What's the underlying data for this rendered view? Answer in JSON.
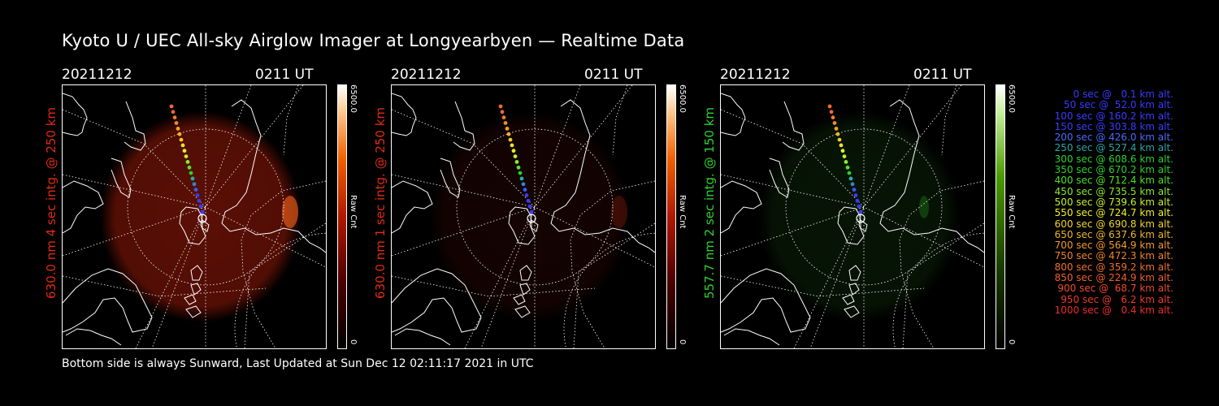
{
  "title": "Kyoto U / UEC All-sky Airglow Imager at Longyearbyen — Realtime Data",
  "panels": [
    {
      "date": "20211212",
      "time": "0211 UT",
      "ylabel": "630.0 nm 4 sec intg. @ 250 km",
      "label_color": "#e02a14",
      "cbar_max": "6500.0",
      "cbar_min": "0",
      "cbar_unit": "Raw Cnt",
      "glow_color": "#6a1206",
      "intensity": 0.85
    },
    {
      "date": "20211212",
      "time": "0211 UT",
      "ylabel": "630.0 nm 1 sec intg. @ 250 km",
      "label_color": "#e02a14",
      "cbar_max": "6500.0",
      "cbar_min": "0",
      "cbar_unit": "Raw Cnt",
      "glow_color": "#2c0804",
      "intensity": 0.45
    },
    {
      "date": "20211212",
      "time": "0211 UT",
      "ylabel": "557.7 nm 2 sec intg. @ 150 km",
      "label_color": "#2ed12e",
      "cbar_max": "6500.0",
      "cbar_min": "0",
      "cbar_unit": "Raw Cnt",
      "glow_color": "#0e2a0a",
      "intensity": 0.5
    }
  ],
  "legend": [
    {
      "text": "0 sec @   0.1 km alt.",
      "color": "#3a3aff"
    },
    {
      "text": "50 sec @  52.0 km alt.",
      "color": "#3a3aff"
    },
    {
      "text": "100 sec @ 160.2 km alt.",
      "color": "#3a3aff"
    },
    {
      "text": "150 sec @ 303.8 km alt.",
      "color": "#3a3aff"
    },
    {
      "text": "200 sec @ 426.0 km alt.",
      "color": "#4a6aff"
    },
    {
      "text": "250 sec @ 527.4 km alt.",
      "color": "#2aa6a6"
    },
    {
      "text": "300 sec @ 608.6 km alt.",
      "color": "#2ad12a"
    },
    {
      "text": "350 sec @ 670.2 km alt.",
      "color": "#2ad12a"
    },
    {
      "text": "400 sec @ 712.4 km alt.",
      "color": "#4ae02a"
    },
    {
      "text": "450 sec @ 735.5 km alt.",
      "color": "#8ae82a"
    },
    {
      "text": "500 sec @ 739.6 km alt.",
      "color": "#c4f02a"
    },
    {
      "text": "550 sec @ 724.7 km alt.",
      "color": "#f0f02a"
    },
    {
      "text": "600 sec @ 690.8 km alt.",
      "color": "#f0d42a"
    },
    {
      "text": "650 sec @ 637.6 km alt.",
      "color": "#f0b42a"
    },
    {
      "text": "700 sec @ 564.9 km alt.",
      "color": "#f09a2a"
    },
    {
      "text": "750 sec @ 472.3 km alt.",
      "color": "#f0842a"
    },
    {
      "text": "800 sec @ 359.2 km alt.",
      "color": "#f0702a"
    },
    {
      "text": "850 sec @ 224.9 km alt.",
      "color": "#f0602a"
    },
    {
      "text": "900 sec @  68.7 km alt.",
      "color": "#f04a2a"
    },
    {
      "text": "950 sec @   6.2 km alt.",
      "color": "#f03a2a"
    },
    {
      "text": "1000 sec @   0.4 km alt.",
      "color": "#f02a2a"
    }
  ],
  "footer": "Bottom side is always Sunward, Last Updated at Sun Dec 12 02:11:17 2021 in UTC"
}
